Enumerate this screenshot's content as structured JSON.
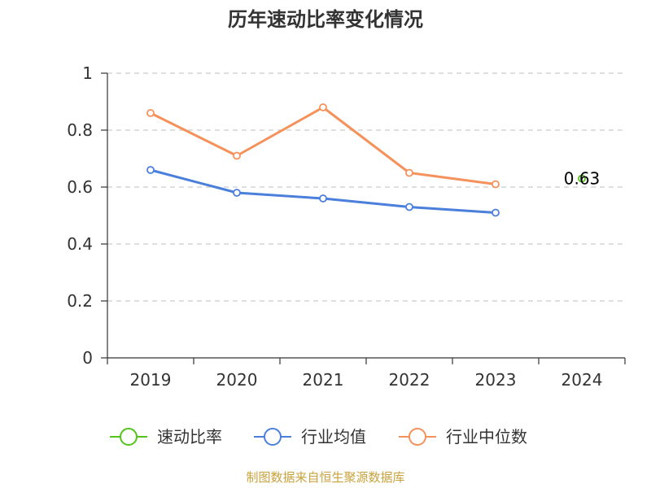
{
  "chart_data": {
    "type": "line",
    "title": "历年速动比率变化情况",
    "categories": [
      "2019",
      "2020",
      "2021",
      "2022",
      "2023",
      "2024"
    ],
    "ylim": [
      0,
      1
    ],
    "yticks": [
      "0",
      "0.2",
      "0.4",
      "0.6",
      "0.8",
      "1"
    ],
    "ytick_values": [
      0,
      0.2,
      0.4,
      0.6,
      0.8,
      1
    ],
    "grid": true,
    "legend_position": "bottom",
    "series": [
      {
        "name": "速动比率",
        "color": "#52c41a",
        "values": [
          null,
          null,
          null,
          null,
          null,
          0.63
        ],
        "labels": [
          null,
          null,
          null,
          null,
          null,
          "0.63"
        ]
      },
      {
        "name": "行业均值",
        "color": "#4a7fdc",
        "values": [
          0.66,
          0.58,
          0.56,
          0.53,
          0.51,
          null
        ]
      },
      {
        "name": "行业中位数",
        "color": "#f5915a",
        "values": [
          0.86,
          0.71,
          0.88,
          0.65,
          0.61,
          null
        ]
      }
    ],
    "source": "制图数据来自恒生聚源数据库"
  }
}
